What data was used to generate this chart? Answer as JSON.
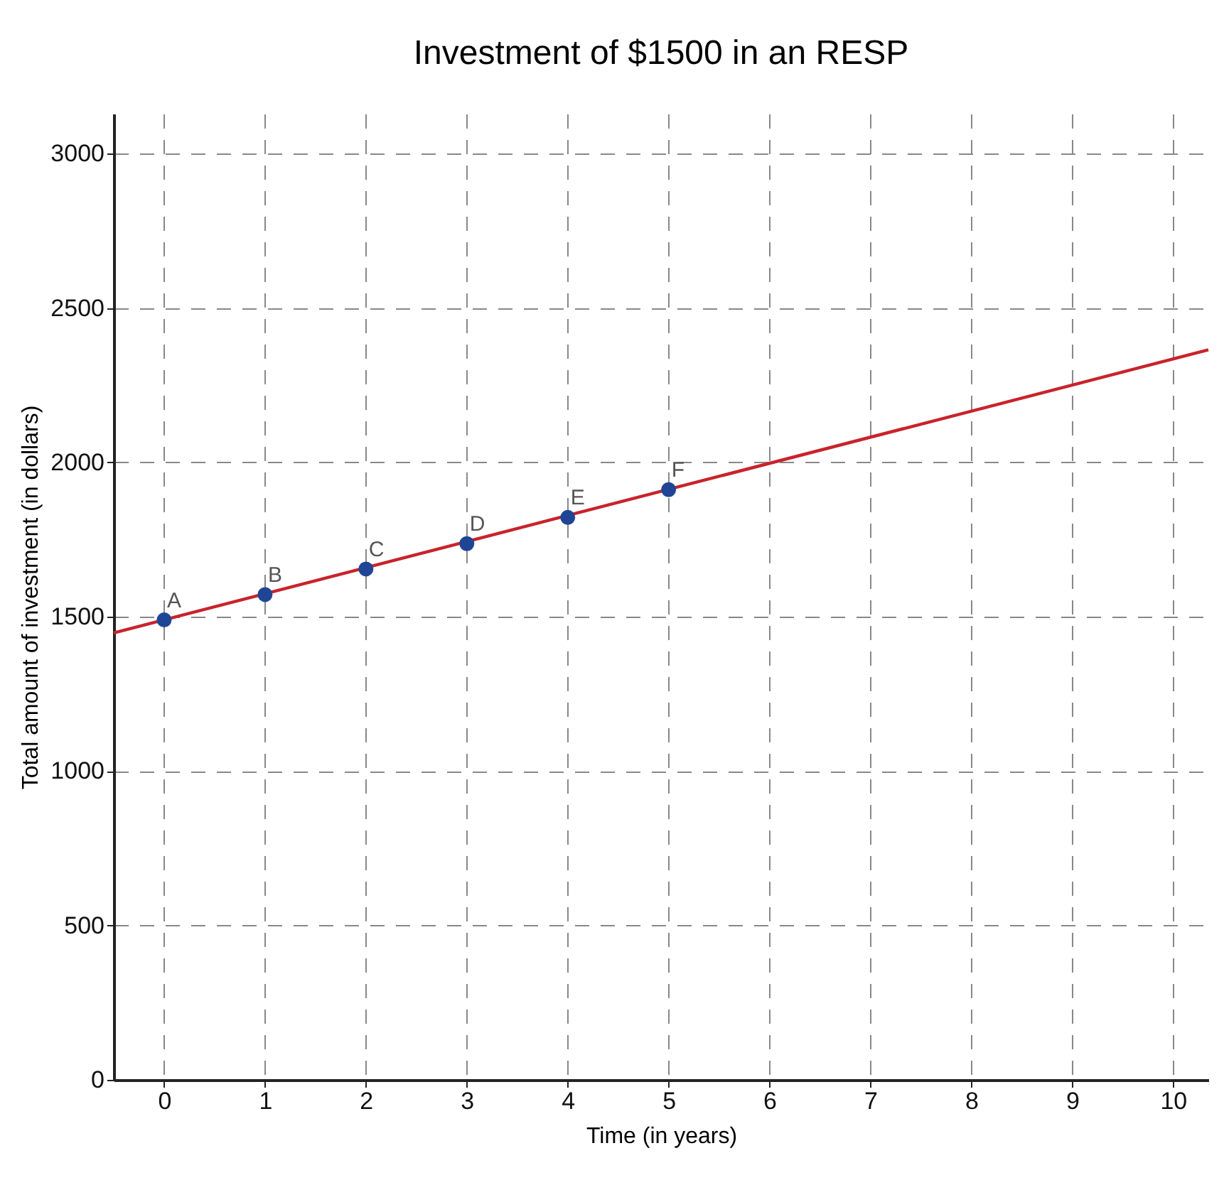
{
  "chart_data": {
    "type": "scatter",
    "title": "Investment of $1500 in an RESP",
    "xlabel": "Time (in years)",
    "ylabel": "Total amount of investment (in dollars)",
    "xlim": [
      -0.5,
      10.35
    ],
    "ylim": [
      0,
      3130
    ],
    "xticks": [
      0,
      1,
      2,
      3,
      4,
      5,
      6,
      7,
      8,
      9,
      10
    ],
    "yticks": [
      0,
      500,
      1000,
      1500,
      2000,
      2500,
      3000
    ],
    "grid": true,
    "series": [
      {
        "type": "line",
        "color": "#c8232c",
        "x": [
          -0.5,
          10.35
        ],
        "values": [
          1448,
          2365
        ]
      },
      {
        "marker": "circle",
        "color": "#1f4594",
        "x": [
          0,
          1,
          2,
          3,
          4,
          5
        ],
        "values": [
          1490,
          1572,
          1655,
          1737,
          1822,
          1912
        ]
      }
    ],
    "annotations": [
      {
        "text": "A",
        "x": 0,
        "y": 1490
      },
      {
        "text": "B",
        "x": 1,
        "y": 1572
      },
      {
        "text": "C",
        "x": 2,
        "y": 1655
      },
      {
        "text": "D",
        "x": 3,
        "y": 1737
      },
      {
        "text": "E",
        "x": 4,
        "y": 1822
      },
      {
        "text": "F",
        "x": 5,
        "y": 1912
      }
    ]
  }
}
